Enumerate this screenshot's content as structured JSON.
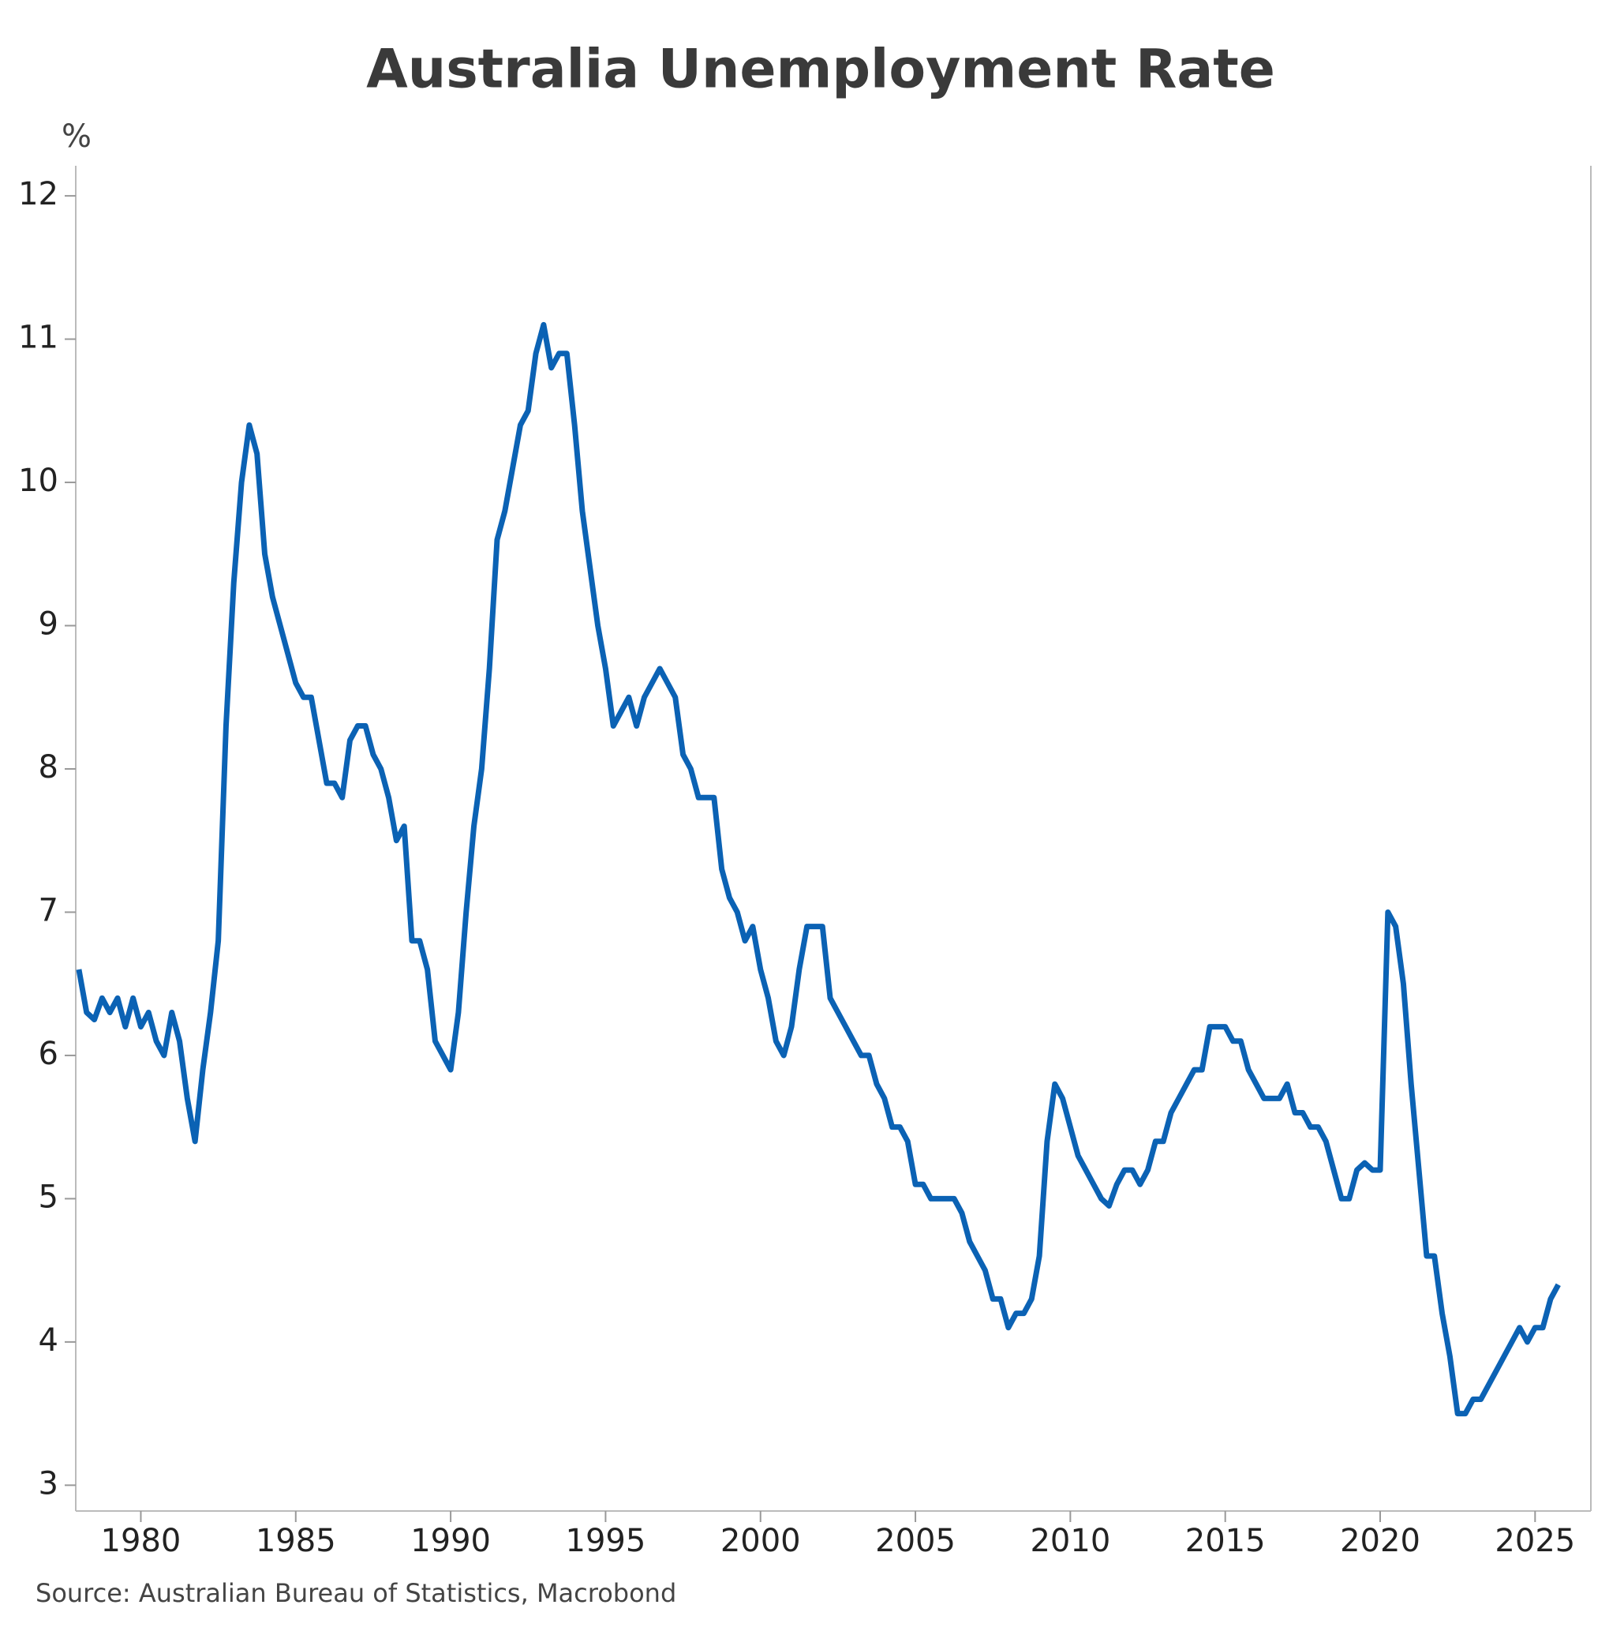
{
  "chart_data": {
    "type": "line",
    "title": "Australia Unemployment Rate",
    "y_label": "%",
    "source": "Source: Australian Bureau of Statistics, Macrobond",
    "x": [
      1978,
      1978.25,
      1978.5,
      1978.75,
      1979,
      1979.25,
      1979.5,
      1979.75,
      1980,
      1980.25,
      1980.5,
      1980.75,
      1981,
      1981.25,
      1981.5,
      1981.75,
      1982,
      1982.25,
      1982.5,
      1982.75,
      1983,
      1983.25,
      1983.5,
      1983.75,
      1984,
      1984.25,
      1984.5,
      1984.75,
      1985,
      1985.25,
      1985.5,
      1985.75,
      1986,
      1986.25,
      1986.5,
      1986.75,
      1987,
      1987.25,
      1987.5,
      1987.75,
      1988,
      1988.25,
      1988.5,
      1988.75,
      1989,
      1989.25,
      1989.5,
      1989.75,
      1990,
      1990.25,
      1990.5,
      1990.75,
      1991,
      1991.25,
      1991.5,
      1991.75,
      1992,
      1992.25,
      1992.5,
      1992.75,
      1993,
      1993.25,
      1993.5,
      1993.75,
      1994,
      1994.25,
      1994.5,
      1994.75,
      1995,
      1995.25,
      1995.5,
      1995.75,
      1996,
      1996.25,
      1996.5,
      1996.75,
      1997,
      1997.25,
      1997.5,
      1997.75,
      1998,
      1998.25,
      1998.5,
      1998.75,
      1999,
      1999.25,
      1999.5,
      1999.75,
      2000,
      2000.25,
      2000.5,
      2000.75,
      2001,
      2001.25,
      2001.5,
      2001.75,
      2002,
      2002.25,
      2002.5,
      2002.75,
      2003,
      2003.25,
      2003.5,
      2003.75,
      2004,
      2004.25,
      2004.5,
      2004.75,
      2005,
      2005.25,
      2005.5,
      2005.75,
      2006,
      2006.25,
      2006.5,
      2006.75,
      2007,
      2007.25,
      2007.5,
      2007.75,
      2008,
      2008.25,
      2008.5,
      2008.75,
      2009,
      2009.25,
      2009.5,
      2009.75,
      2010,
      2010.25,
      2010.5,
      2010.75,
      2011,
      2011.25,
      2011.5,
      2011.75,
      2012,
      2012.25,
      2012.5,
      2012.75,
      2013,
      2013.25,
      2013.5,
      2013.75,
      2014,
      2014.25,
      2014.5,
      2014.75,
      2015,
      2015.25,
      2015.5,
      2015.75,
      2016,
      2016.25,
      2016.5,
      2016.75,
      2017,
      2017.25,
      2017.5,
      2017.75,
      2018,
      2018.25,
      2018.5,
      2018.75,
      2019,
      2019.25,
      2019.5,
      2019.75,
      2020,
      2020.25,
      2020.5,
      2020.75,
      2021,
      2021.25,
      2021.5,
      2021.75,
      2022,
      2022.25,
      2022.5,
      2022.75,
      2023,
      2023.25,
      2023.5,
      2023.75,
      2024,
      2024.25,
      2024.5,
      2024.75,
      2025,
      2025.25,
      2025.5,
      2025.75
    ],
    "series": [
      {
        "name": "Unemployment rate",
        "color": "#0b62b4",
        "values": [
          6.6,
          6.3,
          6.25,
          6.4,
          6.3,
          6.4,
          6.2,
          6.4,
          6.2,
          6.3,
          6.1,
          6.0,
          6.3,
          6.1,
          5.7,
          5.4,
          5.9,
          6.3,
          6.8,
          8.3,
          9.3,
          10.0,
          10.4,
          10.2,
          9.5,
          9.2,
          9.0,
          8.8,
          8.6,
          8.5,
          8.5,
          8.2,
          7.9,
          7.9,
          7.8,
          8.2,
          8.3,
          8.3,
          8.1,
          8.0,
          7.8,
          7.5,
          7.6,
          6.8,
          6.8,
          6.6,
          6.1,
          6.0,
          5.9,
          6.3,
          7.0,
          7.6,
          8.0,
          8.7,
          9.6,
          9.8,
          10.1,
          10.4,
          10.5,
          10.9,
          11.1,
          10.8,
          10.9,
          10.9,
          10.4,
          9.8,
          9.4,
          9.0,
          8.7,
          8.3,
          8.4,
          8.5,
          8.3,
          8.5,
          8.6,
          8.7,
          8.6,
          8.5,
          8.1,
          8.0,
          7.8,
          7.8,
          7.8,
          7.3,
          7.1,
          7.0,
          6.8,
          6.9,
          6.6,
          6.4,
          6.1,
          6.0,
          6.2,
          6.6,
          6.9,
          6.9,
          6.9,
          6.4,
          6.3,
          6.2,
          6.1,
          6.0,
          6.0,
          5.8,
          5.7,
          5.5,
          5.5,
          5.4,
          5.1,
          5.1,
          5.0,
          5.0,
          5.0,
          5.0,
          4.9,
          4.7,
          4.6,
          4.5,
          4.3,
          4.3,
          4.1,
          4.2,
          4.2,
          4.3,
          4.6,
          5.4,
          5.8,
          5.7,
          5.5,
          5.3,
          5.2,
          5.1,
          5.0,
          4.95,
          5.1,
          5.2,
          5.2,
          5.1,
          5.2,
          5.4,
          5.4,
          5.6,
          5.7,
          5.8,
          5.9,
          5.9,
          6.2,
          6.2,
          6.2,
          6.1,
          6.1,
          5.9,
          5.8,
          5.7,
          5.7,
          5.7,
          5.8,
          5.6,
          5.6,
          5.5,
          5.5,
          5.4,
          5.2,
          5.0,
          5.0,
          5.2,
          5.25,
          5.2,
          5.2,
          7.0,
          6.9,
          6.5,
          5.8,
          5.2,
          4.6,
          4.6,
          4.2,
          3.9,
          3.5,
          3.5,
          3.6,
          3.6,
          3.7,
          3.8,
          3.9,
          4.0,
          4.1,
          4.0,
          4.1,
          4.1,
          4.3,
          4.4
        ]
      }
    ],
    "xlim": [
      1977.9,
      2026.8
    ],
    "ylim": [
      2.82,
      12.21
    ],
    "xticks": [
      1980,
      1985,
      1990,
      1995,
      2000,
      2005,
      2010,
      2015,
      2020,
      2025
    ],
    "yticks": [
      3,
      4,
      5,
      6,
      7,
      8,
      9,
      10,
      11,
      12
    ],
    "grid": false
  }
}
